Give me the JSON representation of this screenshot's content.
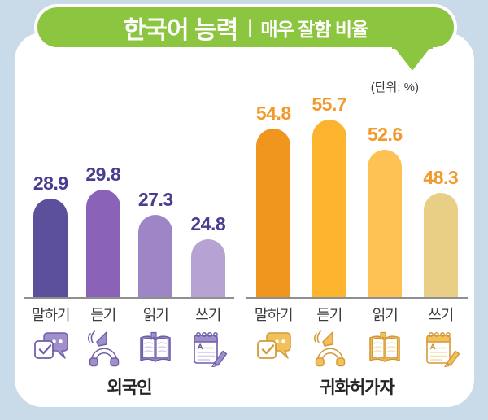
{
  "background_color": "#c9dbe9",
  "banner": {
    "title": "한국어 능력",
    "separator": "|",
    "subtitle": "매우 잘함 비율",
    "color": "#8cc540"
  },
  "unit_label": "(단위: %)",
  "chart_data": {
    "type": "bar",
    "title": "한국어 능력 | 매우 잘함 비율",
    "unit": "%",
    "categories": [
      "말하기",
      "듣기",
      "읽기",
      "쓰기"
    ],
    "category_icons": [
      "speak-icon",
      "listen-icon",
      "read-icon",
      "write-icon"
    ],
    "series": [
      {
        "name": "외국인",
        "values": [
          28.9,
          29.8,
          27.3,
          24.8
        ],
        "bar_colors": [
          "#5c4f9c",
          "#8a62b7",
          "#9e85c6",
          "#b6a2d3"
        ],
        "label_color": "#4a3d8f"
      },
      {
        "name": "귀화허가자",
        "values": [
          54.8,
          55.7,
          52.6,
          48.3
        ],
        "bar_colors": [
          "#f0961e",
          "#fcb42f",
          "#fdc253",
          "#e9cf86"
        ],
        "label_color": "#f2992b"
      }
    ],
    "legend_position": "none",
    "grid": false,
    "value_labels_shown": true
  }
}
